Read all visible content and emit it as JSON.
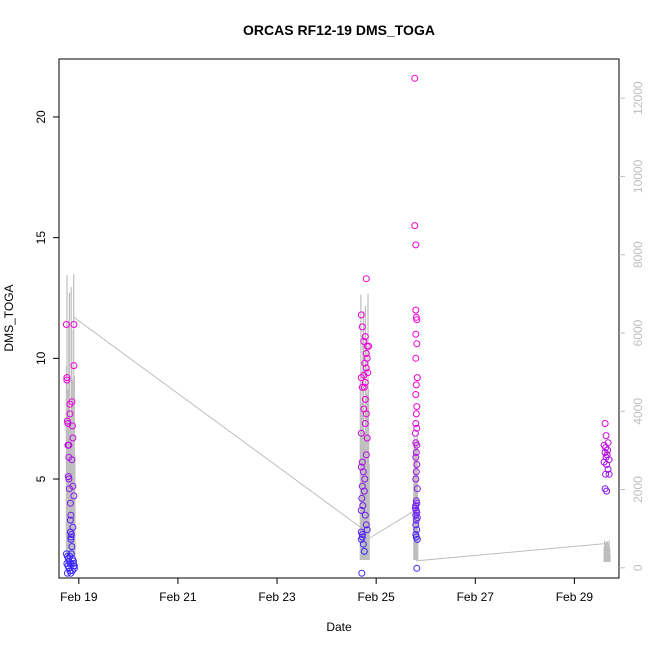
{
  "chart_data": {
    "type": "scatter",
    "title": "ORCAS RF12-19 DMS_TOGA",
    "xlabel": "Date",
    "ylabel": "DMS_TOGA",
    "x_ticks": [
      {
        "label": "Feb 19",
        "day": 19
      },
      {
        "label": "Feb 21",
        "day": 21
      },
      {
        "label": "Feb 23",
        "day": 23
      },
      {
        "label": "Feb 25",
        "day": 25
      },
      {
        "label": "Feb 27",
        "day": 27
      },
      {
        "label": "Feb 29",
        "day": 29
      }
    ],
    "xlim": [
      18.6,
      29.9
    ],
    "ylim": [
      0.9,
      22.4
    ],
    "y_ticks": [
      5,
      10,
      15,
      20
    ],
    "y2_ticks": [
      0,
      2000,
      4000,
      6000,
      8000,
      10000,
      12000
    ],
    "y2lim": [
      -260,
      13000
    ],
    "colors": {
      "low": "#3c28ff",
      "high": "#f000d8",
      "secondary": "#bebebe",
      "frame": "#000000"
    },
    "series": [
      {
        "points": [
          [
            18.75,
            11.4
          ],
          [
            18.76,
            9.2
          ],
          [
            18.76,
            9.1
          ],
          [
            18.77,
            7.4
          ],
          [
            18.78,
            7.3
          ],
          [
            18.78,
            6.4
          ],
          [
            18.8,
            6.4
          ],
          [
            18.8,
            5.9
          ],
          [
            18.79,
            5.1
          ],
          [
            18.8,
            5.0
          ],
          [
            18.82,
            8.1
          ],
          [
            18.82,
            7.7
          ],
          [
            18.81,
            4.6
          ],
          [
            18.83,
            4.0
          ],
          [
            18.84,
            3.5
          ],
          [
            18.83,
            3.3
          ],
          [
            18.83,
            2.8
          ],
          [
            18.85,
            2.7
          ],
          [
            18.84,
            2.6
          ],
          [
            18.84,
            2.5
          ],
          [
            18.86,
            8.2
          ],
          [
            18.87,
            7.2
          ],
          [
            18.86,
            5.8
          ],
          [
            18.88,
            4.7
          ],
          [
            18.9,
            11.4
          ],
          [
            18.9,
            9.7
          ],
          [
            18.88,
            6.7
          ],
          [
            18.9,
            4.3
          ],
          [
            18.88,
            3.0
          ],
          [
            18.86,
            2.2
          ],
          [
            18.75,
            1.9
          ],
          [
            18.77,
            1.8
          ],
          [
            18.79,
            1.7
          ],
          [
            18.8,
            1.6
          ],
          [
            18.82,
            1.8
          ],
          [
            18.85,
            1.9
          ],
          [
            18.87,
            1.7
          ],
          [
            18.89,
            1.5
          ],
          [
            18.9,
            1.4
          ],
          [
            18.91,
            1.3
          ],
          [
            18.76,
            1.5
          ],
          [
            18.78,
            1.4
          ],
          [
            18.8,
            1.3
          ],
          [
            18.82,
            1.2
          ],
          [
            18.84,
            1.1
          ],
          [
            18.87,
            1.2
          ],
          [
            18.89,
            1.6
          ],
          [
            18.91,
            1.4
          ],
          [
            18.77,
            1.1
          ],
          [
            18.83,
            1.5
          ]
        ]
      },
      {
        "points": [
          [
            24.7,
            11.8
          ],
          [
            24.72,
            11.3
          ],
          [
            24.8,
            13.3
          ],
          [
            24.78,
            10.9
          ],
          [
            24.75,
            10.7
          ],
          [
            24.82,
            10.5
          ],
          [
            24.85,
            10.5
          ],
          [
            24.8,
            10.2
          ],
          [
            24.82,
            10.0
          ],
          [
            24.77,
            9.8
          ],
          [
            24.8,
            9.6
          ],
          [
            24.83,
            9.4
          ],
          [
            24.7,
            9.2
          ],
          [
            24.75,
            9.3
          ],
          [
            24.78,
            9.0
          ],
          [
            24.72,
            8.8
          ],
          [
            24.76,
            8.8
          ],
          [
            24.78,
            8.3
          ],
          [
            24.75,
            7.9
          ],
          [
            24.8,
            7.7
          ],
          [
            24.78,
            7.3
          ],
          [
            24.7,
            6.9
          ],
          [
            24.82,
            6.7
          ],
          [
            24.8,
            6.0
          ],
          [
            24.72,
            5.7
          ],
          [
            24.7,
            5.5
          ],
          [
            24.74,
            5.3
          ],
          [
            24.77,
            5.0
          ],
          [
            24.72,
            4.7
          ],
          [
            24.76,
            4.5
          ],
          [
            24.71,
            4.2
          ],
          [
            24.73,
            3.9
          ],
          [
            24.7,
            3.7
          ],
          [
            24.78,
            3.5
          ],
          [
            24.8,
            3.1
          ],
          [
            24.82,
            2.9
          ],
          [
            24.72,
            2.7
          ],
          [
            24.7,
            2.5
          ],
          [
            24.74,
            2.3
          ],
          [
            24.76,
            2.0
          ],
          [
            24.7,
            2.8
          ],
          [
            24.72,
            2.6
          ],
          [
            24.71,
            1.1
          ],
          [
            25.78,
            21.6
          ],
          [
            25.78,
            15.5
          ],
          [
            25.8,
            14.7
          ],
          [
            25.8,
            12.0
          ],
          [
            25.81,
            11.7
          ],
          [
            25.82,
            11.6
          ],
          [
            25.8,
            11.0
          ],
          [
            25.82,
            10.6
          ],
          [
            25.8,
            10.0
          ],
          [
            25.83,
            9.2
          ],
          [
            25.81,
            8.9
          ],
          [
            25.8,
            8.5
          ],
          [
            25.82,
            8.0
          ],
          [
            25.81,
            7.7
          ],
          [
            25.8,
            7.3
          ],
          [
            25.82,
            7.1
          ],
          [
            25.79,
            6.9
          ],
          [
            25.8,
            6.5
          ],
          [
            25.82,
            6.4
          ],
          [
            25.81,
            6.1
          ],
          [
            25.8,
            5.9
          ],
          [
            25.82,
            5.6
          ],
          [
            25.81,
            5.3
          ],
          [
            25.8,
            5.0
          ],
          [
            25.83,
            4.6
          ],
          [
            25.81,
            4.1
          ],
          [
            25.82,
            4.0
          ],
          [
            25.8,
            3.9
          ],
          [
            25.79,
            3.8
          ],
          [
            25.81,
            3.7
          ],
          [
            25.82,
            3.6
          ],
          [
            25.8,
            3.5
          ],
          [
            25.83,
            3.4
          ],
          [
            25.81,
            3.3
          ],
          [
            25.8,
            3.1
          ],
          [
            25.82,
            2.9
          ],
          [
            25.8,
            2.7
          ],
          [
            25.81,
            2.6
          ],
          [
            25.83,
            2.5
          ],
          [
            25.82,
            1.3
          ],
          [
            29.62,
            7.3
          ],
          [
            29.64,
            6.8
          ],
          [
            29.68,
            6.5
          ],
          [
            29.6,
            6.4
          ],
          [
            29.63,
            6.3
          ],
          [
            29.67,
            6.2
          ],
          [
            29.62,
            6.1
          ],
          [
            29.66,
            6.0
          ],
          [
            29.64,
            5.9
          ],
          [
            29.7,
            5.8
          ],
          [
            29.6,
            5.7
          ],
          [
            29.65,
            5.6
          ],
          [
            29.68,
            5.4
          ],
          [
            29.63,
            5.2
          ],
          [
            29.7,
            5.2
          ],
          [
            29.62,
            4.6
          ],
          [
            29.65,
            4.5
          ]
        ]
      }
    ],
    "track": [
      [
        18.9,
        6400
      ],
      [
        24.7,
        1020
      ],
      [
        24.85,
        750
      ],
      [
        25.8,
        1480
      ],
      [
        25.82,
        180
      ],
      [
        29.62,
        620
      ],
      [
        29.7,
        600
      ]
    ],
    "track_bands": [
      [
        18.75,
        18.92,
        300,
        7500
      ],
      [
        24.68,
        24.86,
        200,
        7000
      ],
      [
        25.76,
        25.84,
        200,
        3400
      ],
      [
        29.6,
        29.72,
        150,
        700
      ]
    ]
  }
}
